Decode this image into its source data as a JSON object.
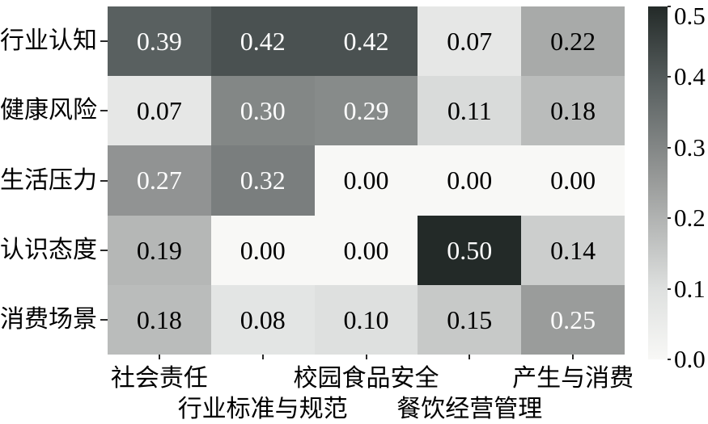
{
  "chart_data": {
    "type": "heatmap",
    "rows": [
      "行业认知",
      "健康风险",
      "生活压力",
      "认识态度",
      "消费场景"
    ],
    "columns": [
      "社会责任",
      "行业标准与规范",
      "校园食品安全",
      "餐饮经营管理",
      "产生与消费"
    ],
    "values": [
      [
        0.39,
        0.42,
        0.42,
        0.07,
        0.22
      ],
      [
        0.07,
        0.3,
        0.29,
        0.11,
        0.18
      ],
      [
        0.27,
        0.32,
        0.0,
        0.0,
        0.0
      ],
      [
        0.19,
        0.0,
        0.0,
        0.5,
        0.14
      ],
      [
        0.18,
        0.08,
        0.1,
        0.15,
        0.25
      ]
    ],
    "value_decimals": 2,
    "vmin": 0.0,
    "vmax": 0.5,
    "colorbar_ticks": [
      "0.5",
      "0.4",
      "0.3",
      "0.2",
      "0.1",
      "0.0"
    ],
    "colormap_stops": [
      {
        "t": 0.0,
        "color": "#f8f8f6"
      },
      {
        "t": 0.2,
        "color": "#dee0df"
      },
      {
        "t": 0.5,
        "color": "#9a9c9b"
      },
      {
        "t": 0.78,
        "color": "#596060"
      },
      {
        "t": 1.0,
        "color": "#232a28"
      }
    ],
    "cell_text_light": "#fdfdfd",
    "cell_text_dark": "#000000",
    "text_color_threshold": 0.25,
    "grid_on": false,
    "legend_position": "right-colorbar",
    "title": "",
    "xlabel": "",
    "ylabel": ""
  }
}
